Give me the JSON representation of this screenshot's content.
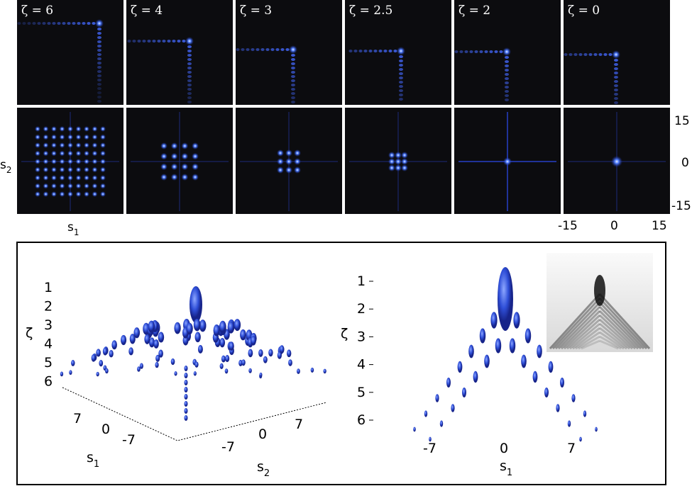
{
  "panels": {
    "labels": [
      "ζ = 6",
      "ζ = 4",
      "ζ = 3",
      "ζ = 2.5",
      "ζ = 2",
      "ζ = 0"
    ],
    "y_axis": {
      "label": "s",
      "sub": "2",
      "ticks": [
        "15",
        "0",
        "-15"
      ]
    },
    "x_axis": {
      "label": "s",
      "sub": "1",
      "ticks": [
        "-15",
        "0",
        "15"
      ]
    }
  },
  "bottom_left": {
    "z_label": "ζ",
    "z_ticks": [
      "1",
      "2",
      "3",
      "4",
      "5",
      "6"
    ],
    "s1_label": "s",
    "s1_sub": "1",
    "s1_ticks": [
      "7",
      "0",
      "-7"
    ],
    "s2_label": "s",
    "s2_sub": "2",
    "s2_ticks": [
      "-7",
      "0",
      "7"
    ]
  },
  "bottom_right": {
    "z_label": "ζ",
    "z_ticks": [
      "1",
      "2",
      "3",
      "4",
      "5",
      "6"
    ],
    "x_label": "s",
    "x_sub": "1",
    "x_ticks": [
      "-7",
      "0",
      "7"
    ]
  }
}
